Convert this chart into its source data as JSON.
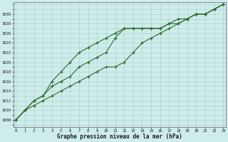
{
  "xlabel": "Graphe pression niveau de la mer (hPa)",
  "x": [
    0,
    1,
    2,
    3,
    4,
    5,
    6,
    7,
    8,
    9,
    10,
    11,
    12,
    13,
    14,
    15,
    16,
    17,
    18,
    19,
    20,
    21,
    22,
    23
  ],
  "line1": [
    1008,
    1010,
    1012,
    1013,
    1015,
    1016,
    1017,
    1019,
    1020,
    1021,
    1022,
    1025,
    1027,
    1027,
    1027,
    1027,
    1027,
    1028,
    1029,
    1029,
    1030,
    1030,
    1031,
    1032
  ],
  "line2": [
    1008,
    1010,
    1012,
    1013,
    1016,
    1018,
    1020,
    1022,
    1023,
    1024,
    1025,
    1026,
    1027,
    1027,
    1027,
    1027,
    1027,
    1028,
    1028,
    1029,
    1030,
    1030,
    1031,
    1032
  ],
  "line3": [
    1008,
    1010,
    1011,
    1012,
    1013,
    1014,
    1015,
    1016,
    1017,
    1018,
    1019,
    1019,
    1020,
    1022,
    1024,
    1025,
    1026,
    1027,
    1028,
    1029,
    1030,
    1030,
    1031,
    1032
  ],
  "ylim_min": 1006.5,
  "ylim_max": 1032.5,
  "yticks": [
    1008,
    1010,
    1012,
    1014,
    1016,
    1018,
    1020,
    1022,
    1024,
    1026,
    1028,
    1030
  ],
  "bg_color": "#ceecea",
  "grid_color": "#a8ceca",
  "line_color": "#2d6a2d",
  "linewidth": 0.8,
  "markersize": 3.5
}
